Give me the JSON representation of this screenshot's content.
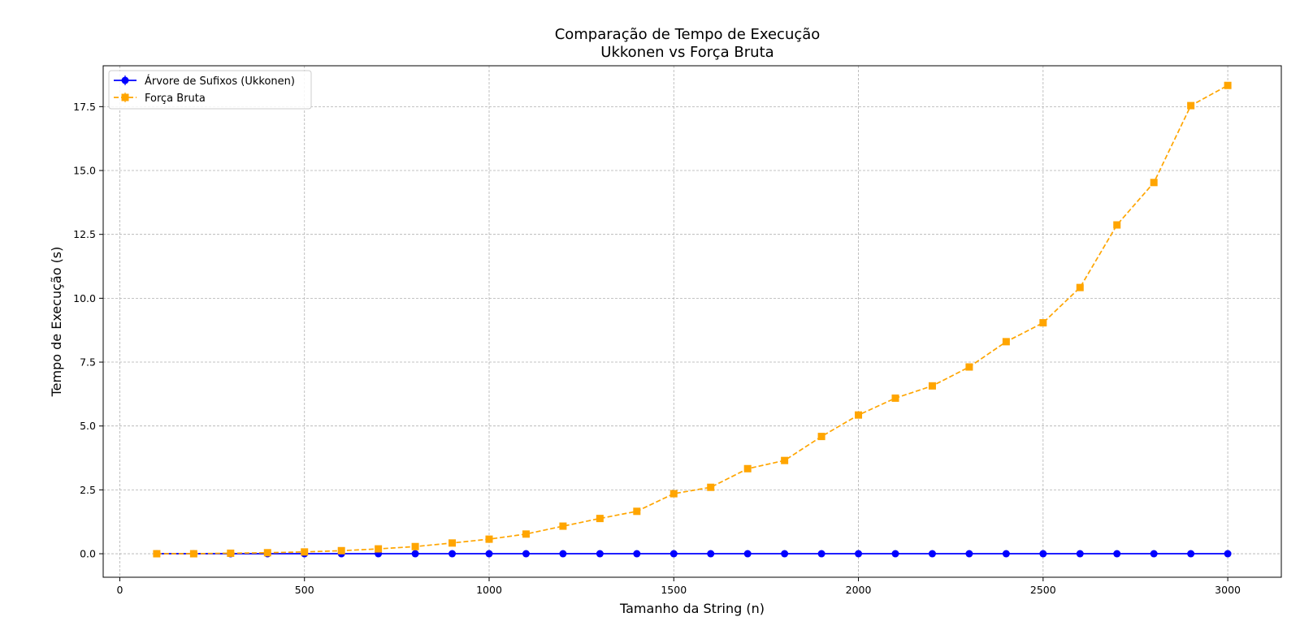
{
  "chart_data": {
    "type": "line",
    "title_line1": "Comparação de Tempo de Execução",
    "title_line2": "Ukkonen vs Força Bruta",
    "xlabel": "Tamanho da String (n)",
    "ylabel": "Tempo de Execução (s)",
    "xlim": [
      -45,
      3145
    ],
    "ylim": [
      -0.92,
      19.1
    ],
    "xticks": [
      0,
      500,
      1000,
      1500,
      2000,
      2500,
      3000
    ],
    "xtick_labels": [
      "0",
      "500",
      "1000",
      "1500",
      "2000",
      "2500",
      "3000"
    ],
    "yticks": [
      0,
      2.5,
      5,
      7.5,
      10,
      12.5,
      15,
      17.5
    ],
    "ytick_labels": [
      "0.0",
      "2.5",
      "5.0",
      "7.5",
      "10.0",
      "12.5",
      "15.0",
      "17.5"
    ],
    "grid": true,
    "legend_position": "upper-left",
    "x": [
      100,
      200,
      300,
      400,
      500,
      600,
      700,
      800,
      900,
      1000,
      1100,
      1200,
      1300,
      1400,
      1500,
      1600,
      1700,
      1800,
      1900,
      2000,
      2100,
      2200,
      2300,
      2400,
      2500,
      2600,
      2700,
      2800,
      2900,
      3000
    ],
    "series": [
      {
        "name": "Árvore de Sufixos (Ukkonen)",
        "color": "#0000ff",
        "marker": "circle",
        "linestyle": "solid",
        "values": [
          0.0,
          0.0,
          0.0,
          0.0,
          0.0,
          0.0,
          0.0,
          0.0,
          0.0,
          0.0,
          0.0,
          0.0,
          0.0,
          0.0,
          0.0,
          0.0,
          0.0,
          0.0,
          0.0,
          0.0,
          0.0,
          0.0,
          0.0,
          0.0,
          0.0,
          0.0,
          0.0,
          0.0,
          0.0,
          0.0
        ]
      },
      {
        "name": "Força Bruta",
        "color": "#ffa500",
        "marker": "square",
        "linestyle": "dashed",
        "values": [
          0.0,
          0.0,
          0.02,
          0.04,
          0.07,
          0.12,
          0.19,
          0.28,
          0.42,
          0.57,
          0.77,
          1.08,
          1.38,
          1.66,
          2.35,
          2.6,
          3.33,
          3.65,
          4.59,
          5.43,
          6.09,
          6.57,
          7.31,
          8.3,
          9.04,
          10.42,
          12.87,
          14.53,
          17.54,
          18.33
        ]
      }
    ]
  }
}
